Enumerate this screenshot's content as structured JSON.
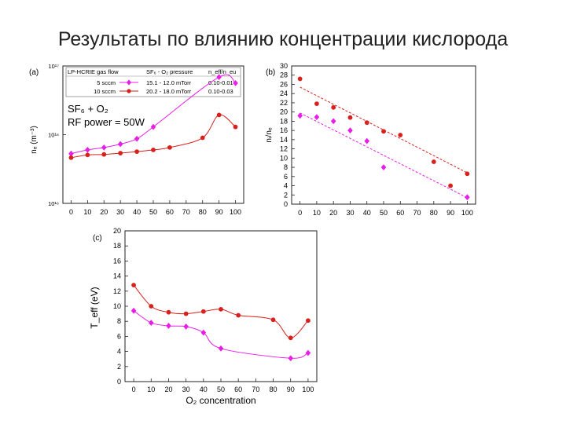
{
  "slide": {
    "title": "Результаты по влиянию концентрации кислорода"
  },
  "colors": {
    "series_10": "#d8201c",
    "series_5": "#e81ee6",
    "axis": "#222222"
  },
  "chart_data": [
    {
      "panel": "(a)",
      "type": "line",
      "yscale": "log",
      "xlim": [
        -5,
        105
      ],
      "ylim": [
        1e+16,
        1e+17
      ],
      "xticks": [
        "0",
        "10",
        "20",
        "30",
        "40",
        "50",
        "60",
        "70",
        "80",
        "90",
        "100"
      ],
      "yticks": [
        "10¹⁶",
        "10¹⁶",
        "10¹⁷"
      ],
      "ylabel": "nₑ (m⁻³)",
      "legend": {
        "headers": [
          "LP-HCRIE gas flow",
          "SF₆ - O₂ pressure",
          "n_eff/n_eu"
        ],
        "rows": [
          [
            "5 sccm",
            "15.1 - 12.0 mTorr",
            "0.10-0.01"
          ],
          [
            "10 sccm",
            "20.2 - 18.0 mTorr",
            "0.10-0.03"
          ]
        ]
      },
      "annotations": [
        "SF₆ + O₂",
        "RF power = 50W"
      ],
      "series": [
        {
          "marker": "diamond",
          "color": "#e81ee6",
          "x": [
            0,
            10,
            20,
            30,
            40,
            50,
            90,
            100
          ],
          "y": [
            2.3e+16,
            2.45e+16,
            2.55e+16,
            2.7e+16,
            2.95e+16,
            3.6e+16,
            8.3e+16,
            7.5e+16
          ]
        },
        {
          "marker": "circle",
          "color": "#d8201c",
          "x": [
            0,
            10,
            20,
            30,
            40,
            50,
            60,
            80,
            90,
            100
          ],
          "y": [
            2.15e+16,
            2.25e+16,
            2.27e+16,
            2.32e+16,
            2.38e+16,
            2.45e+16,
            2.55e+16,
            3e+16,
            4.4e+16,
            3.6e+16
          ]
        }
      ]
    },
    {
      "panel": "(b)",
      "type": "scatter",
      "xlim": [
        -5,
        105
      ],
      "ylim": [
        0,
        30
      ],
      "xticks": [
        "0",
        "10",
        "20",
        "30",
        "40",
        "50",
        "60",
        "70",
        "80",
        "90",
        "100"
      ],
      "yticks": [
        "0",
        "2",
        "4",
        "6",
        "8",
        "10",
        "12",
        "14",
        "16",
        "18",
        "20",
        "22",
        "24",
        "26",
        "28",
        "30"
      ],
      "ylabel": "nᵢ/nₑ",
      "series": [
        {
          "marker": "circle",
          "color": "#d8201c",
          "x": [
            0,
            10,
            20,
            30,
            40,
            50,
            60,
            80,
            90,
            100
          ],
          "y": [
            27.2,
            21.8,
            21,
            18.8,
            17.7,
            15.8,
            15,
            9.2,
            4,
            6.6
          ],
          "fit": [
            [
              0,
              25.4
            ],
            [
              100,
              6.8
            ]
          ]
        },
        {
          "marker": "diamond",
          "color": "#e81ee6",
          "x": [
            0,
            10,
            20,
            30,
            40,
            50,
            100
          ],
          "y": [
            19.2,
            18.9,
            18,
            16,
            13.7,
            8,
            1.5
          ],
          "fit": [
            [
              0,
              19.8
            ],
            [
              100,
              1.4
            ]
          ]
        }
      ]
    },
    {
      "panel": "(c)",
      "type": "line",
      "xlim": [
        -5,
        105
      ],
      "ylim": [
        0,
        20
      ],
      "xticks": [
        "0",
        "10",
        "20",
        "30",
        "40",
        "50",
        "60",
        "70",
        "80",
        "90",
        "100"
      ],
      "yticks": [
        "0",
        "2",
        "4",
        "6",
        "8",
        "10",
        "12",
        "14",
        "16",
        "18",
        "20"
      ],
      "ylabel": "T_eff (eV)",
      "xlabel": "O₂ concentration",
      "series": [
        {
          "marker": "circle",
          "color": "#d8201c",
          "x": [
            0,
            10,
            20,
            30,
            40,
            50,
            60,
            80,
            90,
            100
          ],
          "y": [
            12.8,
            10,
            9.2,
            9,
            9.3,
            9.6,
            8.8,
            8.2,
            5.8,
            8.1
          ]
        },
        {
          "marker": "diamond",
          "color": "#e81ee6",
          "x": [
            0,
            10,
            20,
            30,
            40,
            50,
            90,
            100
          ],
          "y": [
            9.4,
            7.8,
            7.4,
            7.3,
            6.5,
            4.4,
            3.1,
            3.8
          ]
        }
      ]
    }
  ]
}
